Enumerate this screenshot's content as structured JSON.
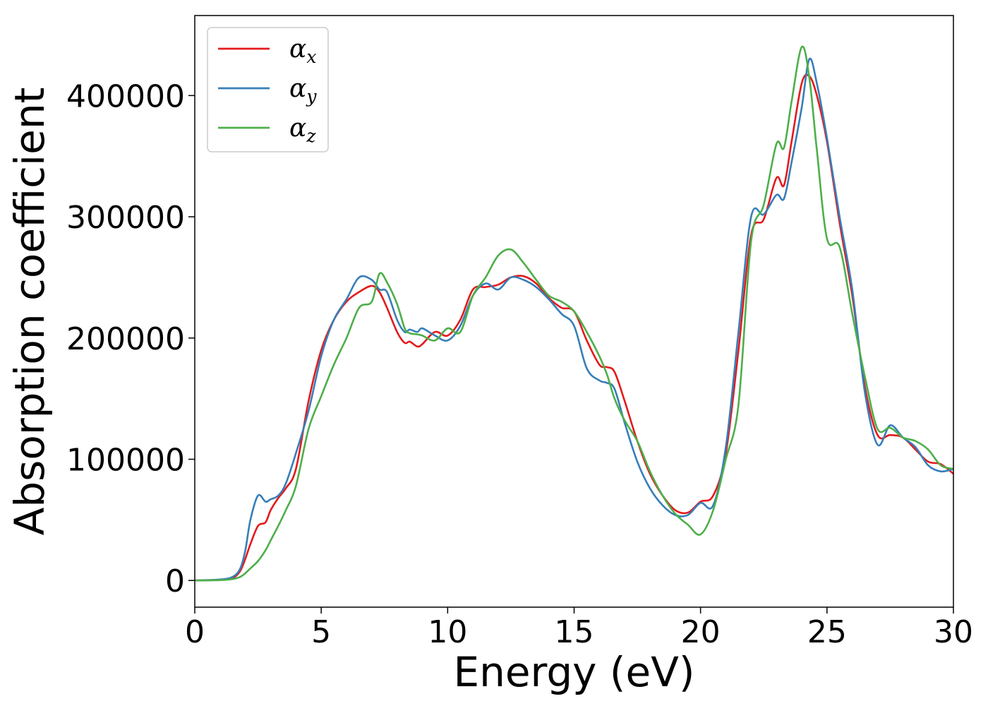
{
  "chart_data": {
    "type": "line",
    "xlabel": "Energy (eV)",
    "ylabel": "Absorption coefficient",
    "xlim": [
      0,
      30
    ],
    "ylim": [
      -22000,
      466000
    ],
    "xticks": [
      0,
      5,
      10,
      15,
      20,
      25,
      30
    ],
    "xtick_labels": [
      "0",
      "5",
      "10",
      "15",
      "20",
      "25",
      "30"
    ],
    "yticks": [
      0,
      100000,
      200000,
      300000,
      400000
    ],
    "ytick_labels": [
      "0",
      "100000",
      "200000",
      "300000",
      "400000"
    ],
    "grid": false,
    "legend_position": "top-left",
    "series": [
      {
        "name": "α",
        "subscript": "x",
        "color": "#e41a1c",
        "x": [
          0,
          1,
          1.5,
          1.8,
          2,
          2.2,
          2.5,
          2.8,
          3,
          3.3,
          3.6,
          4,
          4.5,
          5,
          5.5,
          6,
          6.5,
          7,
          7.3,
          7.6,
          8,
          8.3,
          8.5,
          8.8,
          9,
          9.5,
          10,
          10.5,
          11,
          11.5,
          12,
          12.5,
          13,
          13.5,
          14,
          14.5,
          15,
          15.5,
          16,
          16.3,
          16.6,
          17,
          17.5,
          18,
          18.5,
          19,
          19.5,
          20,
          20.5,
          21,
          21.5,
          22,
          22.5,
          23,
          23.3,
          23.6,
          24,
          24.3,
          24.6,
          25,
          25.5,
          26,
          26.5,
          27,
          27.5,
          28,
          28.5,
          29,
          29.5,
          30
        ],
        "y": [
          0,
          500,
          2000,
          8000,
          18000,
          30000,
          45000,
          48000,
          58000,
          68000,
          76000,
          92000,
          148000,
          190000,
          215000,
          230000,
          238000,
          243000,
          238000,
          225000,
          205000,
          196000,
          197000,
          193000,
          195000,
          205000,
          202000,
          215000,
          240000,
          242000,
          244000,
          250000,
          251000,
          245000,
          233000,
          225000,
          222000,
          198000,
          178000,
          176000,
          172000,
          148000,
          115000,
          88000,
          70000,
          58000,
          56000,
          65000,
          70000,
          105000,
          190000,
          285000,
          298000,
          332000,
          326000,
          362000,
          410000,
          416000,
          400000,
          362000,
          295000,
          235000,
          160000,
          120000,
          120000,
          118000,
          108000,
          98000,
          96000,
          88000
        ]
      },
      {
        "name": "α",
        "subscript": "y",
        "color": "#377eb8",
        "x": [
          0,
          1,
          1.5,
          1.8,
          2,
          2.2,
          2.5,
          2.8,
          3,
          3.3,
          3.6,
          4,
          4.5,
          5,
          5.5,
          6,
          6.5,
          7,
          7.3,
          7.6,
          8,
          8.3,
          8.5,
          8.8,
          9,
          9.5,
          10,
          10.5,
          11,
          11.5,
          12,
          12.5,
          13,
          13.5,
          14,
          14.5,
          15,
          15.5,
          16,
          16.3,
          16.6,
          17,
          17.5,
          18,
          18.5,
          19,
          19.5,
          20,
          20.5,
          21,
          21.5,
          22,
          22.5,
          23,
          23.3,
          23.6,
          24,
          24.3,
          24.6,
          25,
          25.5,
          26,
          26.5,
          27,
          27.5,
          28,
          28.5,
          29,
          29.5,
          30
        ],
        "y": [
          0,
          800,
          3000,
          10000,
          25000,
          50000,
          70000,
          65000,
          67000,
          70000,
          80000,
          105000,
          140000,
          185000,
          215000,
          232000,
          250000,
          248000,
          240000,
          238000,
          215000,
          205000,
          207000,
          205000,
          208000,
          202000,
          198000,
          210000,
          235000,
          245000,
          240000,
          250000,
          248000,
          242000,
          232000,
          220000,
          210000,
          175000,
          165000,
          163000,
          158000,
          130000,
          98000,
          76000,
          62000,
          54000,
          54000,
          64000,
          62000,
          110000,
          205000,
          300000,
          302000,
          318000,
          315000,
          345000,
          390000,
          430000,
          410000,
          365000,
          300000,
          240000,
          155000,
          112000,
          128000,
          118000,
          110000,
          95000,
          90000,
          92000
        ]
      },
      {
        "name": "α",
        "subscript": "z",
        "color": "#4daf4a",
        "x": [
          0,
          1,
          1.5,
          1.8,
          2,
          2.2,
          2.5,
          2.8,
          3,
          3.3,
          3.6,
          4,
          4.5,
          5,
          5.5,
          6,
          6.5,
          7,
          7.3,
          7.6,
          8,
          8.3,
          8.5,
          8.8,
          9,
          9.5,
          10,
          10.5,
          11,
          11.5,
          12,
          12.5,
          13,
          13.5,
          14,
          14.5,
          15,
          15.5,
          16,
          16.3,
          16.6,
          17,
          17.5,
          18,
          18.5,
          19,
          19.5,
          20,
          20.5,
          21,
          21.5,
          22,
          22.5,
          23,
          23.3,
          23.6,
          24,
          24.3,
          24.6,
          25,
          25.5,
          26,
          26.5,
          27,
          27.5,
          28,
          28.5,
          29,
          29.5,
          30
        ],
        "y": [
          0,
          300,
          1200,
          3000,
          6000,
          10000,
          16000,
          25000,
          33000,
          45000,
          58000,
          78000,
          125000,
          152000,
          178000,
          200000,
          225000,
          230000,
          253000,
          246000,
          228000,
          208000,
          204000,
          203000,
          202000,
          198000,
          208000,
          205000,
          235000,
          250000,
          268000,
          273000,
          262000,
          248000,
          235000,
          230000,
          222000,
          205000,
          185000,
          170000,
          150000,
          132000,
          115000,
          90000,
          70000,
          55000,
          46000,
          38000,
          58000,
          100000,
          145000,
          280000,
          310000,
          360000,
          357000,
          395000,
          440000,
          415000,
          355000,
          282000,
          275000,
          220000,
          168000,
          125000,
          126000,
          118000,
          115000,
          108000,
          95000,
          92000
        ]
      }
    ]
  }
}
